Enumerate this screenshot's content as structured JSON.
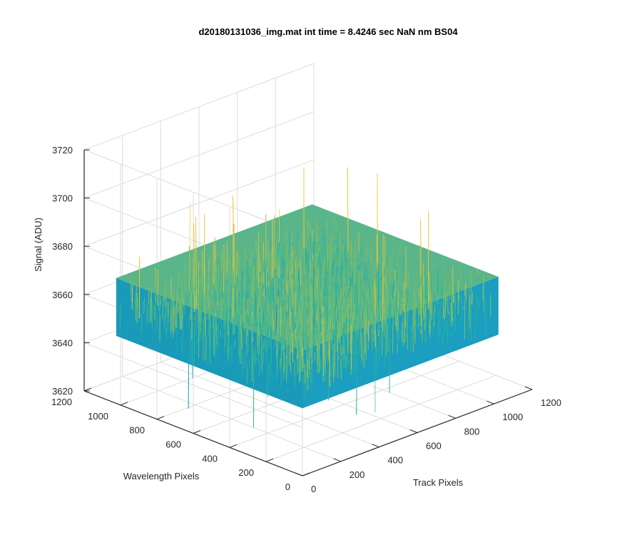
{
  "chart_data": {
    "type": "surface",
    "title": "d20180131036_img.mat int time = 8.4246 sec  NaN nm BS04",
    "xlabel": "Track Pixels",
    "ylabel": "Wavelength Pixels",
    "zlabel": "Signal (ADU)",
    "xlim": [
      0,
      1200
    ],
    "ylim": [
      0,
      1200
    ],
    "zlim": [
      3620,
      3720
    ],
    "xticks": [
      "0",
      "200",
      "400",
      "600",
      "800",
      "1000",
      "1200"
    ],
    "yticks": [
      "0",
      "200",
      "400",
      "600",
      "800",
      "1000",
      "1200"
    ],
    "zticks": [
      "3620",
      "3640",
      "3660",
      "3680",
      "3700",
      "3720"
    ],
    "grid": true,
    "data_extent": {
      "track_pixels": [
        0,
        1024
      ],
      "wavelength_pixels": [
        0,
        1024
      ]
    },
    "signal_stats": {
      "mean": 3660,
      "typical_min": 3635,
      "typical_max": 3685,
      "extreme_min": 3622,
      "extreme_max": 3708
    },
    "colormap": [
      "#1f5fb8",
      "#0a8fc8",
      "#16a7b8",
      "#2fb49a",
      "#7cbd6a",
      "#c9c04a",
      "#e9c93a"
    ]
  }
}
